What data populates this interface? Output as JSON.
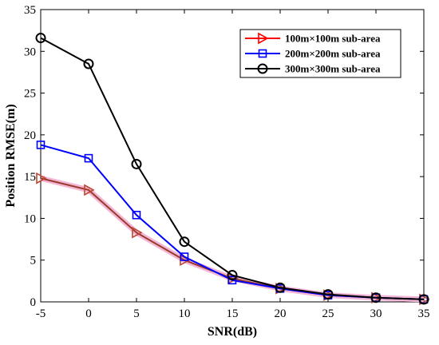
{
  "chart_data": {
    "type": "line",
    "xlabel": "SNR(dB)",
    "ylabel": "Position RMSE(m)",
    "xlim": [
      -5,
      35
    ],
    "ylim": [
      0,
      35
    ],
    "x_ticks": [
      -5,
      0,
      5,
      10,
      15,
      20,
      25,
      30,
      35
    ],
    "y_ticks": [
      0,
      5,
      10,
      15,
      20,
      25,
      30,
      35
    ],
    "grid": false,
    "legend_position": "top-right",
    "x": [
      -5,
      0,
      5,
      10,
      15,
      20,
      25,
      30,
      35
    ],
    "series": [
      {
        "name": "100m×100m sub-area",
        "marker": "triangle-right",
        "color": "#ff0000",
        "values": [
          14.8,
          13.4,
          8.3,
          5.0,
          2.8,
          1.6,
          0.8,
          0.5,
          0.3
        ]
      },
      {
        "name": "200m×200m sub-area",
        "marker": "square",
        "color": "#0000ff",
        "values": [
          18.8,
          17.2,
          10.4,
          5.4,
          2.6,
          1.6,
          0.8,
          0.5,
          0.3
        ]
      },
      {
        "name": "300m×300m sub-area",
        "marker": "circle",
        "color": "#000000",
        "values": [
          31.6,
          28.5,
          16.5,
          7.2,
          3.2,
          1.7,
          0.9,
          0.5,
          0.3
        ]
      }
    ]
  }
}
